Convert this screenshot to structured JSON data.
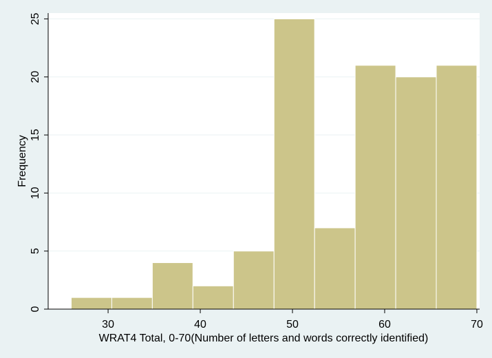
{
  "chart_data": {
    "type": "bar",
    "title": "",
    "xlabel": "WRAT4 Total, 0-70(Number of letters and words correctly identified)",
    "ylabel": "Frequency",
    "bins": [
      {
        "start": 26.0,
        "end": 30.4,
        "value": 1
      },
      {
        "start": 30.4,
        "end": 34.8,
        "value": 1
      },
      {
        "start": 34.8,
        "end": 39.2,
        "value": 4
      },
      {
        "start": 39.2,
        "end": 43.6,
        "value": 2
      },
      {
        "start": 43.6,
        "end": 48.0,
        "value": 5
      },
      {
        "start": 48.0,
        "end": 52.4,
        "value": 25
      },
      {
        "start": 52.4,
        "end": 56.8,
        "value": 7
      },
      {
        "start": 56.8,
        "end": 61.2,
        "value": 21
      },
      {
        "start": 61.2,
        "end": 65.6,
        "value": 20
      },
      {
        "start": 65.6,
        "end": 70.0,
        "value": 21
      }
    ],
    "xlim": [
      23.5,
      70.3
    ],
    "ylim": [
      0,
      25.5
    ],
    "xticks": [
      30,
      40,
      50,
      60,
      70
    ],
    "yticks": [
      0,
      5,
      10,
      15,
      20,
      25
    ],
    "grid": true,
    "colors": {
      "bar_fill": "#ccc58a",
      "bar_edge": "#ffffff",
      "plot_bg": "#ffffff",
      "page_bg": "#eaf2f3",
      "grid": "#eaf2f3"
    }
  }
}
